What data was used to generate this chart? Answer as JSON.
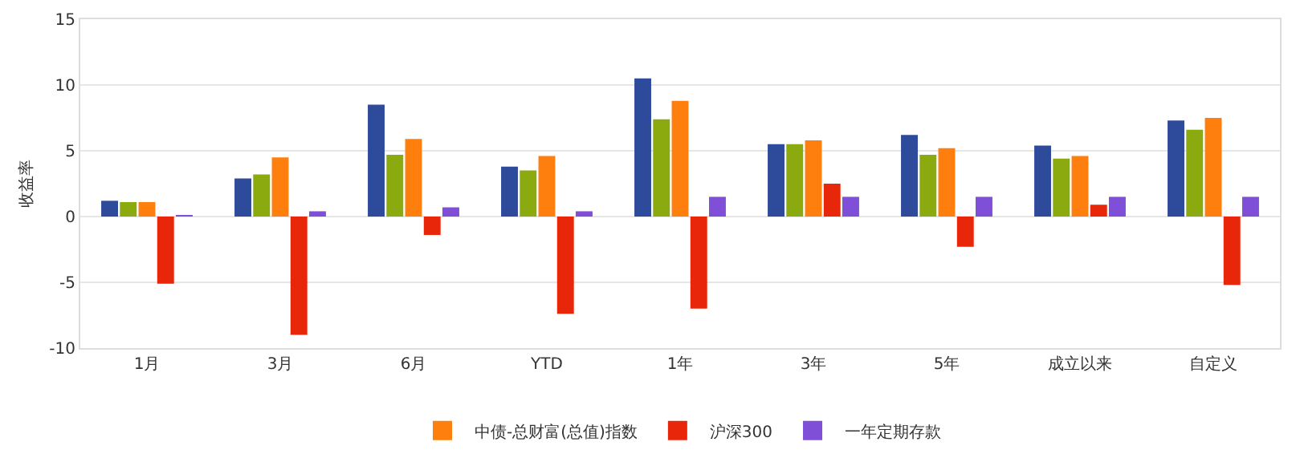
{
  "chart_data": {
    "type": "bar",
    "ylabel": "收益率",
    "categories": [
      "1月",
      "3月",
      "6月",
      "YTD",
      "1年",
      "3年",
      "5年",
      "成立以来",
      "自定义"
    ],
    "series": [
      {
        "color": "#2e4a9a",
        "values": [
          1.2,
          2.9,
          8.5,
          3.8,
          10.5,
          5.5,
          6.2,
          5.4,
          7.3
        ]
      },
      {
        "color": "#8aaa10",
        "values": [
          1.1,
          3.2,
          4.7,
          3.5,
          7.4,
          5.5,
          4.7,
          4.4,
          6.6
        ]
      },
      {
        "name": "中债-总财富(总值)指数",
        "color": "#ff7f0e",
        "values": [
          1.1,
          4.5,
          5.9,
          4.6,
          8.8,
          5.8,
          5.2,
          4.6,
          7.5
        ]
      },
      {
        "name": "沪深300",
        "color": "#e8260a",
        "values": [
          -5.1,
          -9.0,
          -1.4,
          -7.4,
          -7.0,
          2.5,
          -2.3,
          0.9,
          -5.2
        ]
      },
      {
        "name": "一年定期存款",
        "color": "#7f4fd8",
        "values": [
          0.1,
          0.4,
          0.7,
          0.4,
          1.5,
          1.5,
          1.5,
          1.5,
          1.5
        ]
      }
    ],
    "ylim": [
      -10,
      15
    ],
    "yticks": [
      -10,
      -5,
      0,
      5,
      10,
      15
    ],
    "grid": "y",
    "legend": "bottom"
  }
}
